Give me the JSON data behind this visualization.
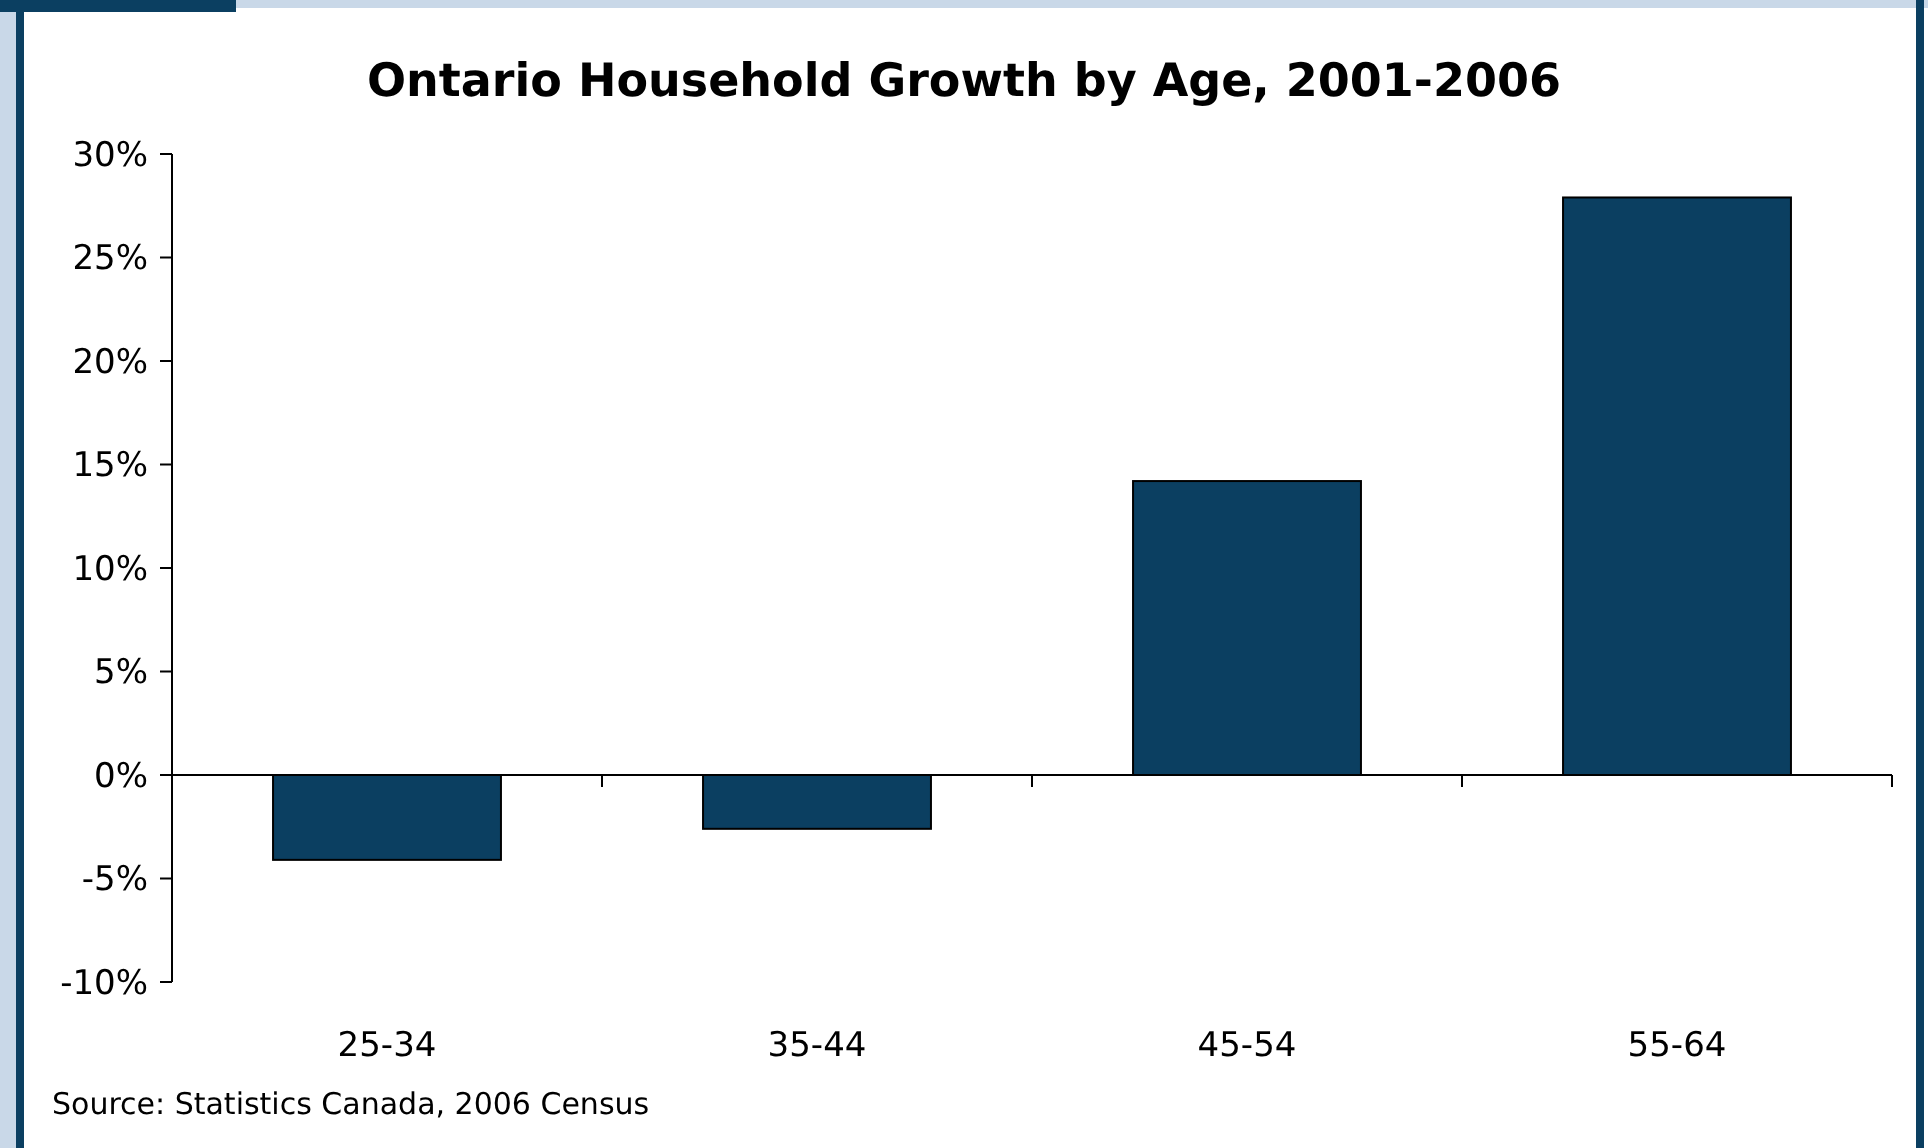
{
  "chart_data": {
    "type": "bar",
    "title": "Ontario Household Growth by Age, 2001-2006",
    "categories": [
      "25-34",
      "35-44",
      "45-54",
      "55-64"
    ],
    "values": [
      -4.1,
      -2.6,
      14.2,
      27.9
    ],
    "color": "#0b3f61",
    "ylim": [
      -10,
      30
    ],
    "yticks": [
      {
        "value": -10,
        "label": "-10%"
      },
      {
        "value": -5,
        "label": "-5%"
      },
      {
        "value": 0,
        "label": "0%"
      },
      {
        "value": 5,
        "label": "5%"
      },
      {
        "value": 10,
        "label": "10%"
      },
      {
        "value": 15,
        "label": "15%"
      },
      {
        "value": 20,
        "label": "20%"
      },
      {
        "value": 25,
        "label": "25%"
      },
      {
        "value": 30,
        "label": "30%"
      }
    ],
    "annotations": [
      "Source: Statistics Canada, 2006 Census"
    ]
  }
}
